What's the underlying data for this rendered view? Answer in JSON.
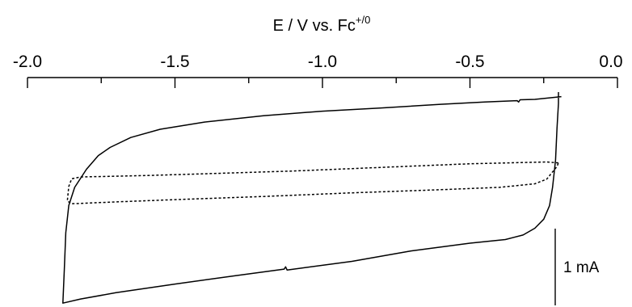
{
  "chart_data": {
    "type": "line",
    "title": "",
    "xlabel": {
      "main": "E / V vs. Fc",
      "superscript": "+/0"
    },
    "ylabel": "",
    "x_axis_position": "top",
    "xlim": [
      -2.0,
      0.0
    ],
    "major_ticks": [
      -2.0,
      -1.5,
      -1.0,
      -0.5,
      0.0
    ],
    "tick_labels": [
      "-2.0",
      "-1.5",
      "-1.0",
      "-0.5",
      "0.0"
    ],
    "minor_ticks": [
      -1.75,
      -1.25,
      -0.75,
      -0.25
    ],
    "ylim_mA": [
      -4.4,
      0.62
    ],
    "scale_bar": {
      "label": "1 mA",
      "value_mA": 1
    },
    "grid": false,
    "series": [
      {
        "style": "solid",
        "color": "#000000",
        "points": [
          [
            -0.19,
            0.2
          ],
          [
            -0.22,
            0.18
          ],
          [
            -0.28,
            0.14
          ],
          [
            -0.33,
            0.13
          ],
          [
            -0.335,
            0.08
          ],
          [
            -0.34,
            0.11
          ],
          [
            -0.45,
            0.08
          ],
          [
            -0.6,
            0.03
          ],
          [
            -0.8,
            -0.05
          ],
          [
            -1.0,
            -0.12
          ],
          [
            -1.2,
            -0.22
          ],
          [
            -1.4,
            -0.36
          ],
          [
            -1.55,
            -0.52
          ],
          [
            -1.65,
            -0.7
          ],
          [
            -1.72,
            -0.92
          ],
          [
            -1.76,
            -1.1
          ],
          [
            -1.8,
            -1.4
          ],
          [
            -1.84,
            -1.8
          ],
          [
            -1.86,
            -2.2
          ],
          [
            -1.87,
            -2.8
          ],
          [
            -1.875,
            -3.6
          ],
          [
            -1.88,
            -4.35
          ],
          [
            -1.82,
            -4.26
          ],
          [
            -1.7,
            -4.12
          ],
          [
            -1.5,
            -3.93
          ],
          [
            -1.3,
            -3.75
          ],
          [
            -1.13,
            -3.6
          ],
          [
            -1.125,
            -3.55
          ],
          [
            -1.12,
            -3.62
          ],
          [
            -0.9,
            -3.43
          ],
          [
            -0.7,
            -3.2
          ],
          [
            -0.5,
            -3.03
          ],
          [
            -0.38,
            -2.95
          ],
          [
            -0.32,
            -2.85
          ],
          [
            -0.28,
            -2.7
          ],
          [
            -0.25,
            -2.5
          ],
          [
            -0.23,
            -2.2
          ],
          [
            -0.22,
            -1.8
          ],
          [
            -0.21,
            -1.2
          ],
          [
            -0.205,
            -0.5
          ],
          [
            -0.2,
            0.05
          ],
          [
            -0.2,
            0.3
          ]
        ]
      },
      {
        "style": "dotted",
        "color": "#000000",
        "points": [
          [
            -0.2,
            -1.26
          ],
          [
            -0.24,
            -1.24
          ],
          [
            -0.5,
            -1.28
          ],
          [
            -0.8,
            -1.36
          ],
          [
            -1.1,
            -1.44
          ],
          [
            -1.4,
            -1.5
          ],
          [
            -1.6,
            -1.54
          ],
          [
            -1.75,
            -1.56
          ],
          [
            -1.82,
            -1.57
          ],
          [
            -1.85,
            -1.61
          ],
          [
            -1.86,
            -1.78
          ],
          [
            -1.865,
            -2.1
          ],
          [
            -1.85,
            -2.16
          ],
          [
            -1.7,
            -2.12
          ],
          [
            -1.5,
            -2.07
          ],
          [
            -1.2,
            -2.0
          ],
          [
            -0.9,
            -1.92
          ],
          [
            -0.6,
            -1.85
          ],
          [
            -0.4,
            -1.8
          ],
          [
            -0.28,
            -1.72
          ],
          [
            -0.24,
            -1.62
          ],
          [
            -0.22,
            -1.46
          ],
          [
            -0.205,
            -1.34
          ],
          [
            -0.2,
            -1.26
          ]
        ]
      }
    ]
  }
}
